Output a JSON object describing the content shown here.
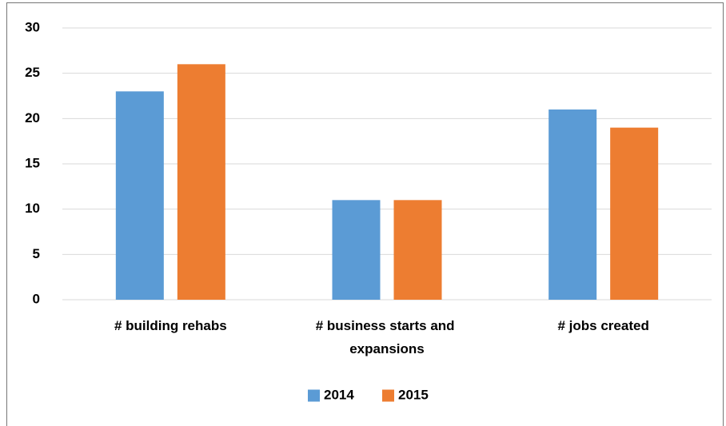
{
  "chart_data": {
    "type": "bar",
    "categories": [
      "# building rehabs",
      "# business starts and expansions",
      "# jobs created"
    ],
    "series": [
      {
        "name": "2014",
        "color": "#5b9bd5",
        "values": [
          23,
          11,
          21
        ]
      },
      {
        "name": "2015",
        "color": "#ed7d31",
        "values": [
          26,
          11,
          19
        ]
      }
    ],
    "ylim": [
      0,
      30
    ],
    "yticks": [
      0,
      5,
      10,
      15,
      20,
      25,
      30
    ],
    "grid": true,
    "legend": "bottom"
  }
}
